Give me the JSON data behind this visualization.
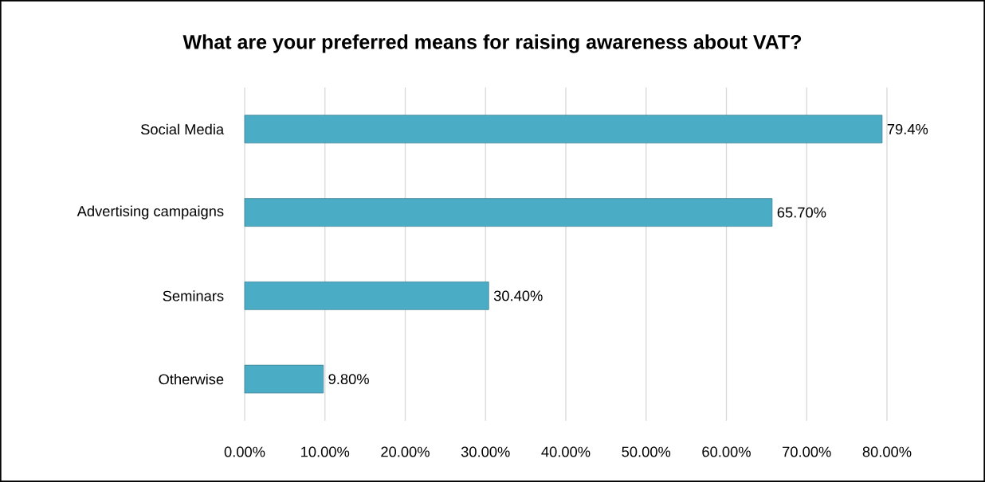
{
  "chart_data": {
    "type": "bar",
    "orientation": "horizontal",
    "title": "What are your preferred means for raising awareness about VAT?",
    "categories": [
      "Social Media",
      "Advertising campaigns",
      "Seminars",
      "Otherwise"
    ],
    "values": [
      79.4,
      65.7,
      30.4,
      9.8
    ],
    "value_labels": [
      "79.4%",
      "65.70%",
      "30.40%",
      "9.80%"
    ],
    "color": "#4bacc6",
    "xlim": [
      0,
      80
    ],
    "xticks": [
      {
        "value": 0,
        "label": "0.00%"
      },
      {
        "value": 10,
        "label": "10.00%"
      },
      {
        "value": 20,
        "label": "20.00%"
      },
      {
        "value": 30,
        "label": "30.00%"
      },
      {
        "value": 40,
        "label": "40.00%"
      },
      {
        "value": 50,
        "label": "50.00%"
      },
      {
        "value": 60,
        "label": "60.00%"
      },
      {
        "value": 70,
        "label": "70.00%"
      },
      {
        "value": 80,
        "label": "80.00%"
      }
    ],
    "grid": "x"
  }
}
